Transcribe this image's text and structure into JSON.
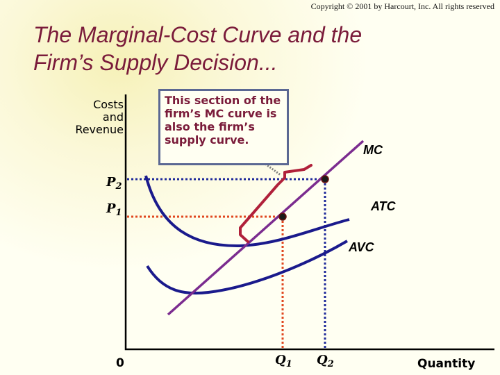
{
  "copyright": "Copyright © 2001 by Harcourt, Inc. All rights reserved",
  "title_line1": "The Marginal-Cost Curve and the",
  "title_line2": "Firm’s Supply Decision...",
  "y_axis_label": [
    "Costs",
    "and",
    "Revenue"
  ],
  "x_axis_label": "Quantity",
  "origin_label": "0",
  "callout_text": "This section of the firm’s MC curve is also the firm’s supply curve.",
  "price_labels": [
    {
      "letter": "P",
      "sub": "2"
    },
    {
      "letter": "P",
      "sub": "1"
    }
  ],
  "quantity_labels": [
    {
      "letter": "Q",
      "sub": "1"
    },
    {
      "letter": "Q",
      "sub": "2"
    }
  ],
  "curve_labels": {
    "mc": "MC",
    "atc": "ATC",
    "avc": "AVC"
  },
  "colors": {
    "title": "#7A1B3A",
    "mc_curve": "#7B2C8F",
    "cost_curves": "#1A1A8C",
    "supply_bracket": "#B0203A",
    "p1_guides": "#E0471F",
    "p2_guides": "#1F2A9A",
    "callout_border": "#5B6893",
    "background": "#FFFFF2"
  }
}
